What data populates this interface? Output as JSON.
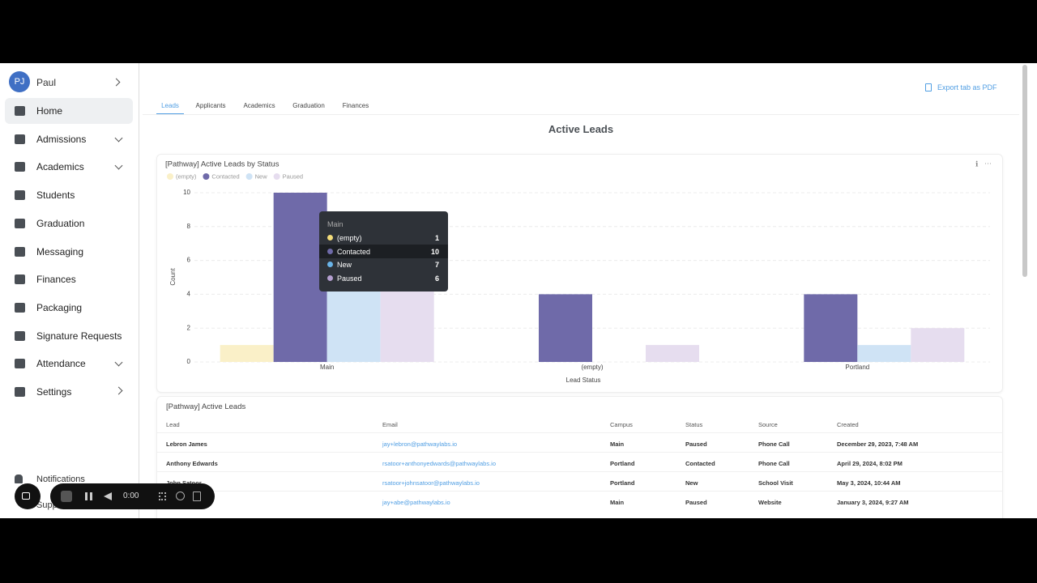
{
  "sidebar": {
    "user": {
      "initials": "PJ",
      "name": "Paul"
    },
    "nav": [
      "Home",
      "Admissions",
      "Academics",
      "Students",
      "Graduation",
      "Messaging",
      "Finances",
      "Packaging",
      "Signature Requests",
      "Attendance",
      "Settings"
    ],
    "footer": [
      "Notifications",
      "Support"
    ]
  },
  "recorder": {
    "time": "0:00"
  },
  "tabs": [
    "Leads",
    "Applicants",
    "Academics",
    "Graduation",
    "Finances"
  ],
  "export": "Export tab as PDF",
  "page_title": "Active Leads",
  "chart_data": {
    "type": "bar",
    "title": "[Pathway] Active Leads by Status",
    "categories": [
      "Main",
      "(empty)",
      "Portland"
    ],
    "series": [
      {
        "name": "(empty)",
        "color": "#faf0c8",
        "values": [
          1,
          null,
          null
        ]
      },
      {
        "name": "Contacted",
        "color": "#6f6aa9",
        "values": [
          10,
          4,
          4
        ]
      },
      {
        "name": "New",
        "color": "#cfe3f5",
        "values": [
          7,
          null,
          1
        ]
      },
      {
        "name": "Paused",
        "color": "#e6ddef",
        "values": [
          6,
          1,
          2
        ]
      }
    ],
    "xlabel": "Lead Status",
    "ylabel": "Count",
    "ylim": [
      0,
      10
    ],
    "yticks": [
      0,
      2,
      4,
      6,
      8,
      10
    ],
    "grid": true
  },
  "table": {
    "title": "[Pathway] Active Leads",
    "columns": [
      "Lead",
      "Email",
      "Campus",
      "Status",
      "Source",
      "Created"
    ],
    "rows": [
      [
        "Lebron James",
        "jay+lebron@pathwaylabs.io",
        "Main",
        "Paused",
        "Phone Call",
        "December 29, 2023, 7:48 AM"
      ],
      [
        "Anthony Edwards",
        "rsatoor+anthonyedwards@pathwaylabs.io",
        "Portland",
        "Contacted",
        "Phone Call",
        "April 29, 2024, 8:02 PM"
      ],
      [
        "John Satoor",
        "rsatoor+johnsatoor@pathwaylabs.io",
        "Portland",
        "New",
        "School Visit",
        "May 3, 2024, 10:44 AM"
      ],
      [
        null,
        "jay+abe@pathwaylabs.io",
        "Main",
        "Paused",
        "Website",
        "January 3, 2024, 9:27 AM"
      ]
    ]
  }
}
